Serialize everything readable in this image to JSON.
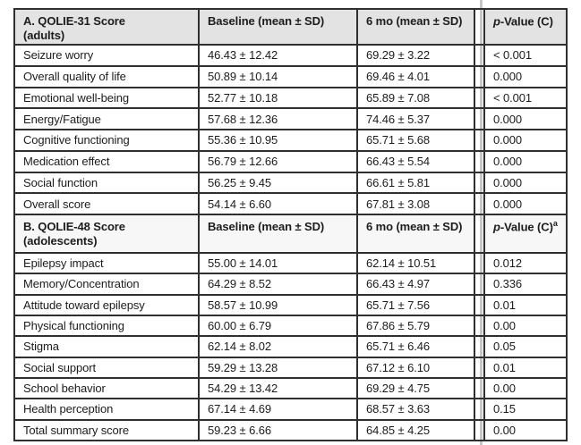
{
  "page": {
    "background": "#ffffff",
    "artifact_line_color": "#c7c7c7"
  },
  "table": {
    "border_color": "#2f2f2f",
    "sections": [
      {
        "title_line1": "A. QOLIE-31 Score",
        "title_line2": "(adults)",
        "baseline_header": "Baseline (mean ± SD)",
        "six_mo_header": "6 mo (mean ± SD)",
        "p_header_italic": "p",
        "p_header_rest": "-Value (C)",
        "p_header_sup": "",
        "header_bg": "#e3e3e3",
        "rows": [
          {
            "label": "Seizure worry",
            "baseline": "46.43 ± 12.42",
            "six_mo": "69.29 ± 3.22",
            "p_value": "< 0.001"
          },
          {
            "label": "Overall quality of life",
            "baseline": "50.89 ± 10.14",
            "six_mo": "69.46 ± 4.01",
            "p_value": "0.000"
          },
          {
            "label": "Emotional well-being",
            "baseline": "52.77 ± 10.18",
            "six_mo": "65.89 ± 7.08",
            "p_value": "< 0.001"
          },
          {
            "label": "Energy/Fatigue",
            "baseline": "57.68 ± 12.36",
            "six_mo": "74.46 ± 5.37",
            "p_value": "0.000"
          },
          {
            "label": "Cognitive functioning",
            "baseline": "55.36 ± 10.95",
            "six_mo": "65.71 ± 5.68",
            "p_value": "0.000"
          },
          {
            "label": "Medication effect",
            "baseline": "56.79 ± 12.66",
            "six_mo": "66.43 ± 5.54",
            "p_value": "0.000"
          },
          {
            "label": "Social function",
            "baseline": "56.25 ± 9.45",
            "six_mo": "66.61 ± 5.81",
            "p_value": "0.000"
          },
          {
            "label": "Overall score",
            "baseline": "54.14 ± 6.60",
            "six_mo": "67.81 ± 3.08",
            "p_value": "0.000"
          }
        ]
      },
      {
        "title_line1": "B. QOLIE-48 Score",
        "title_line2": "(adolescents)",
        "baseline_header": "Baseline (mean ± SD)",
        "six_mo_header": "6 mo (mean ± SD)",
        "p_header_italic": "p",
        "p_header_rest": "-Value (C)",
        "p_header_sup": "a",
        "header_bg": "#f7f7f7",
        "rows": [
          {
            "label": "Epilepsy impact",
            "baseline": "55.00 ± 14.01",
            "six_mo": "62.14 ± 10.51",
            "p_value": "0.012"
          },
          {
            "label": "Memory/Concentration",
            "baseline": "64.29 ± 8.52",
            "six_mo": "66.43 ± 4.97",
            "p_value": "0.336"
          },
          {
            "label": "Attitude toward epilepsy",
            "baseline": "58.57 ± 10.99",
            "six_mo": "65.71 ± 7.56",
            "p_value": "0.01"
          },
          {
            "label": "Physical functioning",
            "baseline": "60.00 ± 6.79",
            "six_mo": "67.86 ± 5.79",
            "p_value": "0.00"
          },
          {
            "label": "Stigma",
            "baseline": "62.14 ± 8.02",
            "six_mo": "65.71 ± 6.46",
            "p_value": "0.05"
          },
          {
            "label": "Social support",
            "baseline": "59.29 ± 13.28",
            "six_mo": "67.12 ± 6.10",
            "p_value": "0.01"
          },
          {
            "label": "School behavior",
            "baseline": "54.29 ± 13.42",
            "six_mo": "69.29 ± 4.75",
            "p_value": "0.00"
          },
          {
            "label": "Health perception",
            "baseline": "67.14 ± 4.69",
            "six_mo": "68.57 ± 3.63",
            "p_value": "0.15"
          },
          {
            "label": "Total summary score",
            "baseline": "59.23 ± 6.66",
            "six_mo": "64.85 ± 4.25",
            "p_value": "0.00"
          }
        ]
      }
    ]
  }
}
